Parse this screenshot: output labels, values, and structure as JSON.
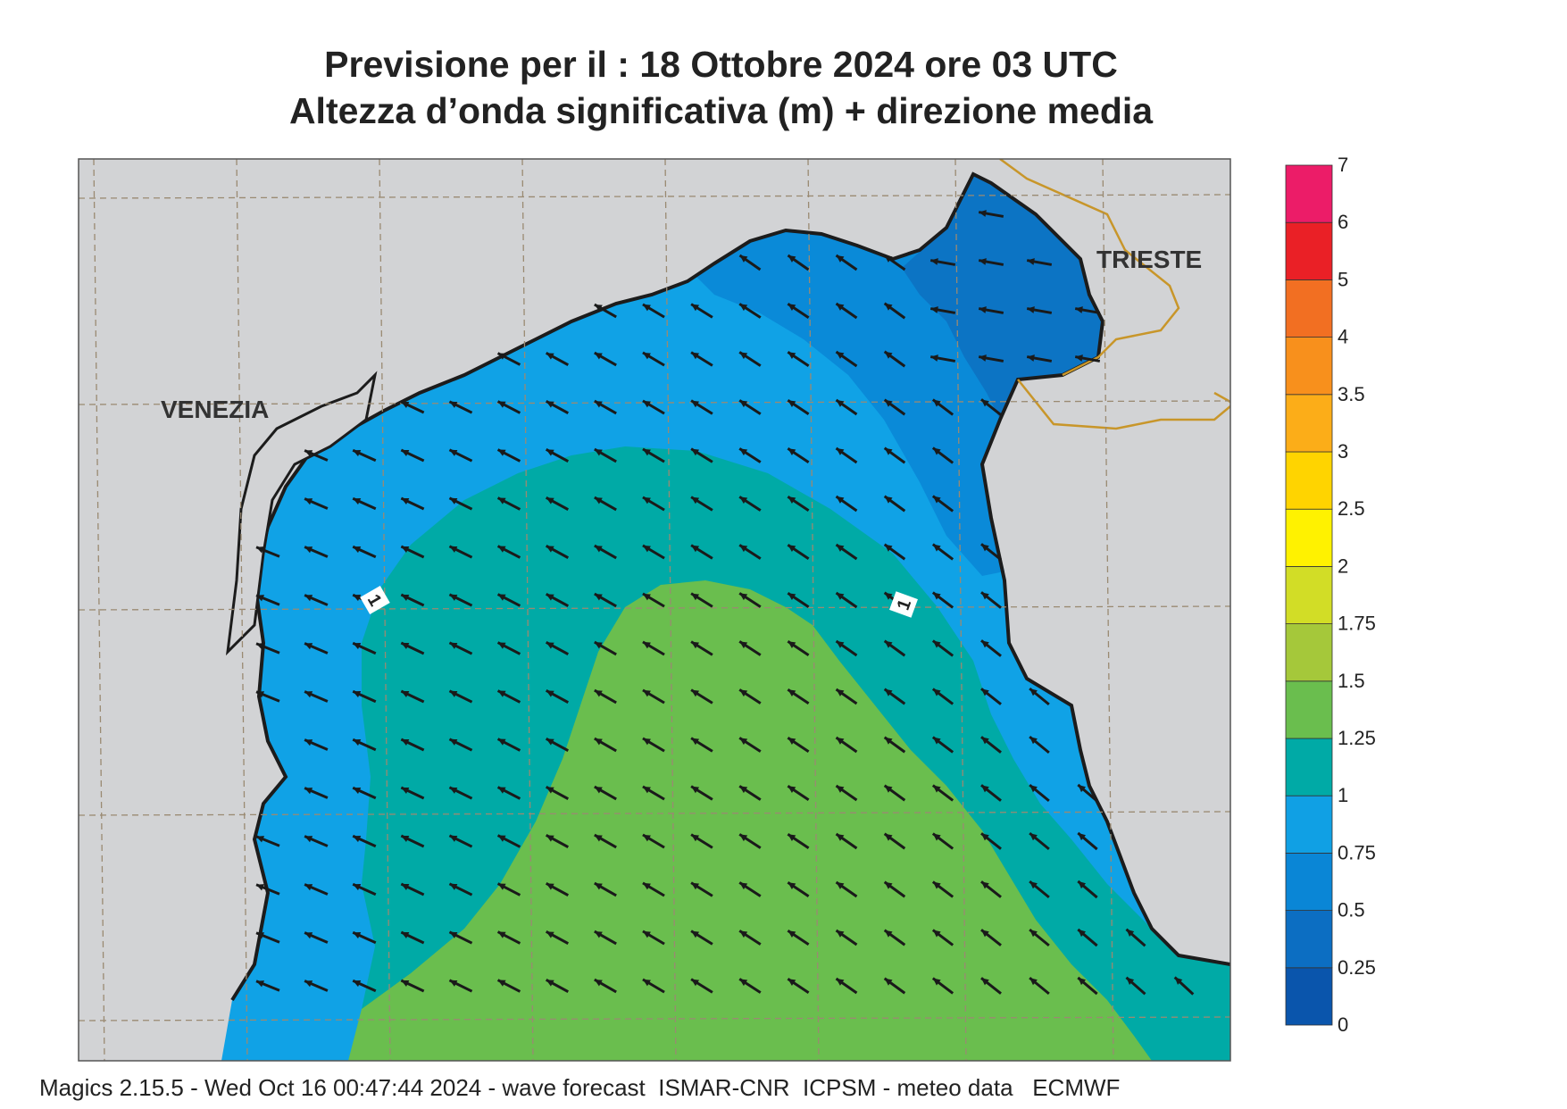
{
  "title_line1": "Previsione per il  :  18  Ottobre  2024   ore 03 UTC",
  "title_line2": "Altezza d’onda significativa (m) + direzione media",
  "places": [
    {
      "name": "VENEZIA"
    },
    {
      "name": "TRIESTE"
    }
  ],
  "contour_labels": [
    "1",
    "1"
  ],
  "legend": {
    "levels": [
      "0",
      "0.25",
      "0.5",
      "0.75",
      "1",
      "1.25",
      "1.5",
      "1.75",
      "2",
      "2.5",
      "3",
      "3.5",
      "4",
      "5",
      "6",
      "7"
    ],
    "colors": [
      "#0a55ac",
      "#0c6ec2",
      "#0a86d6",
      "#10a0e4",
      "#00aaa6",
      "#6abe4e",
      "#a5c83a",
      "#d2dd26",
      "#fff200",
      "#ffd400",
      "#fcad18",
      "#f8901c",
      "#f26f22",
      "#ea2026",
      "#ec1c68"
    ]
  },
  "colors": {
    "land": "#d2d3d5",
    "sea_lt_0_5": "#0c74c4",
    "sea_0_5_0_75": "#0a8ad8",
    "sea_0_75_1": "#10a2e6",
    "sea_1_1_25": "#00aaa6",
    "sea_1_25_1_5": "#6abe4e",
    "coastline": "#1c1c1c",
    "border": "#c8962a",
    "grid": "#9a8a72"
  },
  "footer": "Magics 2.15.5 - Wed Oct 16 00:47:44 2024 - wave forecast  ISMAR-CNR  ICPSM - meteo data   ECMWF"
}
